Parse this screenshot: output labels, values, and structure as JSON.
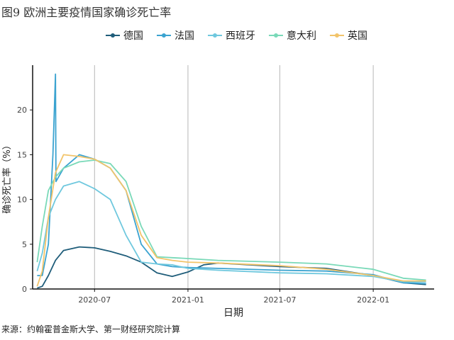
{
  "figure": {
    "title": "图9 欧洲主要疫情国家确诊死亡率",
    "source": "来源：约翰霍普金斯大学、第一财经研究院计算"
  },
  "chart_data": {
    "type": "line",
    "title": "",
    "xlabel": "日期",
    "ylabel": "确诊死亡率（%）",
    "ylim": [
      0,
      25
    ],
    "yticks": [
      0,
      5,
      10,
      15,
      20
    ],
    "xticks": [
      "2020-07",
      "2021-01",
      "2021-07",
      "2022-01"
    ],
    "x_domain": [
      "2020-03-01",
      "2022-05-01"
    ],
    "grid": "vertical",
    "legend_position": "top",
    "series": [
      {
        "name": "德国",
        "color": "#1f5d7a",
        "x": [
          "2020-03-10",
          "2020-03-20",
          "2020-04-01",
          "2020-04-15",
          "2020-05-01",
          "2020-06-01",
          "2020-07-01",
          "2020-08-01",
          "2020-09-01",
          "2020-10-01",
          "2020-11-01",
          "2020-12-01",
          "2021-01-01",
          "2021-02-01",
          "2021-03-01",
          "2021-05-01",
          "2021-07-01",
          "2021-10-01",
          "2022-01-01",
          "2022-03-01",
          "2022-04-15"
        ],
        "values": [
          0.1,
          0.3,
          1.5,
          3.2,
          4.3,
          4.7,
          4.6,
          4.2,
          3.7,
          3.0,
          1.8,
          1.4,
          1.9,
          2.7,
          2.9,
          2.7,
          2.5,
          2.3,
          1.5,
          0.7,
          0.5
        ]
      },
      {
        "name": "法国",
        "color": "#3ba3d0",
        "x": [
          "2020-03-10",
          "2020-03-20",
          "2020-04-01",
          "2020-04-10",
          "2020-04-15",
          "2020-04-16",
          "2020-05-01",
          "2020-06-01",
          "2020-07-01",
          "2020-08-01",
          "2020-09-01",
          "2020-10-01",
          "2020-11-01",
          "2020-12-01",
          "2021-01-01",
          "2021-03-01",
          "2021-07-01",
          "2021-10-01",
          "2022-01-01",
          "2022-03-01",
          "2022-04-15"
        ],
        "values": [
          1.5,
          1.5,
          5,
          15,
          24,
          12,
          13.5,
          15,
          14.5,
          13.5,
          11,
          5,
          2.8,
          2.5,
          2.4,
          2.3,
          2.1,
          2.0,
          1.6,
          0.7,
          0.6
        ]
      },
      {
        "name": "西班牙",
        "color": "#6fc8de",
        "x": [
          "2020-03-10",
          "2020-03-20",
          "2020-04-01",
          "2020-04-15",
          "2020-05-01",
          "2020-06-01",
          "2020-07-01",
          "2020-08-01",
          "2020-09-01",
          "2020-10-01",
          "2020-11-01",
          "2020-12-01",
          "2021-01-01",
          "2021-03-01",
          "2021-07-01",
          "2021-10-01",
          "2022-01-01",
          "2022-03-01",
          "2022-04-15"
        ],
        "values": [
          2,
          4,
          8,
          10,
          11.5,
          12,
          11.2,
          10,
          6,
          3,
          2.8,
          2.7,
          2.3,
          2.1,
          1.8,
          1.7,
          1.4,
          0.8,
          0.8
        ]
      },
      {
        "name": "意大利",
        "color": "#79d9b8",
        "x": [
          "2020-03-10",
          "2020-03-20",
          "2020-04-01",
          "2020-04-15",
          "2020-05-01",
          "2020-06-01",
          "2020-07-01",
          "2020-08-01",
          "2020-09-01",
          "2020-10-01",
          "2020-11-01",
          "2020-12-01",
          "2021-01-01",
          "2021-03-01",
          "2021-07-01",
          "2021-10-01",
          "2022-01-01",
          "2022-03-01",
          "2022-04-15"
        ],
        "values": [
          3,
          7,
          11,
          12.5,
          13.5,
          14.2,
          14.4,
          14.0,
          12.0,
          7.0,
          3.6,
          3.5,
          3.4,
          3.2,
          3.0,
          2.8,
          2.2,
          1.2,
          1.0
        ]
      },
      {
        "name": "英国",
        "color": "#f2c46a",
        "x": [
          "2020-03-10",
          "2020-03-20",
          "2020-04-01",
          "2020-04-15",
          "2020-05-01",
          "2020-06-01",
          "2020-07-01",
          "2020-08-01",
          "2020-09-01",
          "2020-10-01",
          "2020-11-01",
          "2020-12-01",
          "2021-01-01",
          "2021-03-01",
          "2021-07-01",
          "2021-10-01",
          "2022-01-01",
          "2022-03-01",
          "2022-04-15"
        ],
        "values": [
          0.3,
          2,
          8,
          13,
          15,
          14.8,
          14.5,
          13.5,
          11,
          6,
          3.5,
          3.2,
          3.0,
          2.9,
          2.6,
          2.2,
          1.5,
          0.9,
          0.9
        ]
      }
    ]
  }
}
